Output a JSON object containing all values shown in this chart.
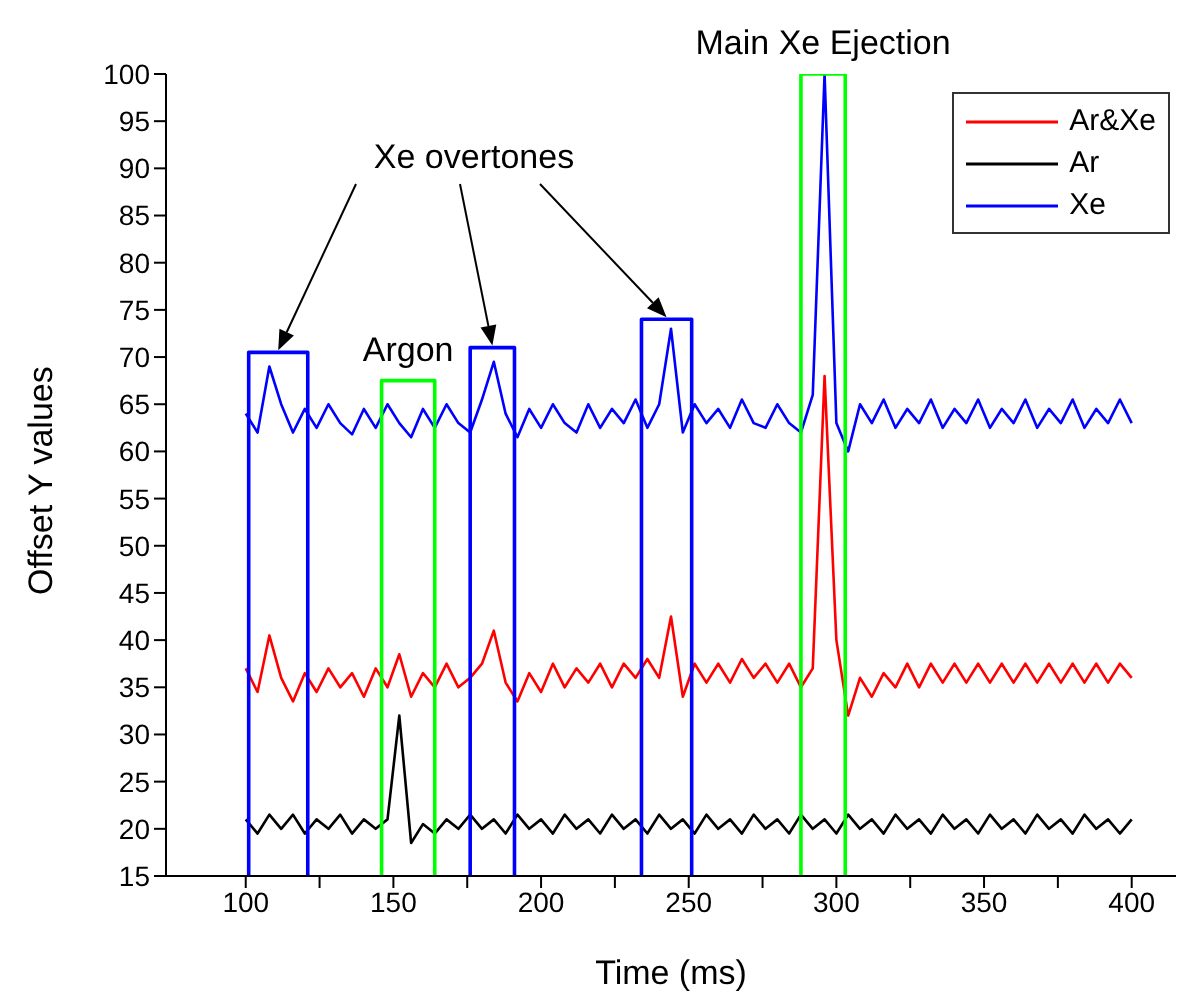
{
  "chart_data": {
    "type": "line",
    "xlabel": "Time (ms)",
    "ylabel": "Offset Y values",
    "x": [
      100,
      104,
      108,
      112,
      116,
      120,
      124,
      128,
      132,
      136,
      140,
      144,
      148,
      152,
      156,
      160,
      164,
      168,
      172,
      176,
      180,
      184,
      188,
      192,
      196,
      200,
      204,
      208,
      212,
      216,
      220,
      224,
      228,
      232,
      236,
      240,
      244,
      248,
      252,
      256,
      260,
      264,
      268,
      272,
      276,
      280,
      284,
      288,
      292,
      296,
      300,
      304,
      308,
      312,
      316,
      320,
      324,
      328,
      332,
      336,
      340,
      344,
      348,
      352,
      356,
      360,
      364,
      368,
      372,
      376,
      380,
      384,
      388,
      392,
      396,
      400
    ],
    "series": [
      {
        "name": "Ar&Xe",
        "color": "#ff0000",
        "values": [
          37,
          34.5,
          40.5,
          36,
          33.5,
          36.5,
          34.5,
          37,
          35,
          36.5,
          34,
          37,
          35,
          38.5,
          34,
          36.5,
          35,
          37.5,
          35,
          36,
          37.5,
          41,
          35.5,
          33.5,
          36.5,
          34.5,
          37.5,
          35,
          37,
          35.5,
          37.5,
          35,
          37.5,
          36,
          38,
          36,
          42.5,
          34,
          37.5,
          35.5,
          37.5,
          35.5,
          38,
          36,
          37.5,
          35.5,
          37.5,
          35,
          37,
          68,
          40,
          32,
          36,
          34,
          36.5,
          35,
          37.5,
          35,
          37.5,
          35.5,
          37.5,
          35.5,
          37.5,
          35.5,
          37.5,
          35.5,
          37.5,
          35.5,
          37.5,
          35.5,
          37.5,
          35.5,
          37.5,
          35.5,
          37.5,
          36
        ]
      },
      {
        "name": "Ar",
        "color": "#000000",
        "values": [
          21,
          19.5,
          21.5,
          20,
          21.5,
          19.5,
          21,
          20,
          21.5,
          19.5,
          21,
          20,
          21,
          32,
          18.5,
          20.5,
          19.5,
          21,
          20,
          21.5,
          20,
          21,
          19.5,
          21.5,
          20,
          21,
          19.5,
          21.5,
          20,
          21,
          19.5,
          21.5,
          20,
          21,
          19.5,
          21.5,
          20,
          21,
          19.5,
          21.5,
          20,
          21,
          19.5,
          21.5,
          20,
          21,
          19.5,
          21.5,
          20,
          21,
          19.5,
          21.5,
          20,
          21,
          19.5,
          21.5,
          20,
          21,
          19.5,
          21.5,
          20,
          21,
          19.5,
          21.5,
          20,
          21,
          19.5,
          21.5,
          20,
          21,
          19.5,
          21.5,
          20,
          21,
          19.5,
          21
        ]
      },
      {
        "name": "Xe",
        "color": "#0000ff",
        "values": [
          64,
          62,
          69,
          65,
          62,
          64.5,
          62.5,
          65,
          63,
          61.8,
          64.5,
          62.5,
          65,
          63,
          61.5,
          64.5,
          62.5,
          65,
          63,
          62,
          65.5,
          69.5,
          64,
          61.5,
          64.5,
          62.5,
          65,
          63,
          62,
          65,
          62.5,
          64.5,
          63,
          65.5,
          62.5,
          65,
          73,
          62,
          65,
          63,
          64.5,
          62.5,
          65.5,
          63,
          62.5,
          65,
          63,
          62,
          66,
          100,
          63,
          60,
          65,
          63,
          65.5,
          62.5,
          64.5,
          63,
          65.5,
          62.5,
          64.5,
          63,
          65.5,
          62.5,
          64.5,
          63,
          65.5,
          62.5,
          64.5,
          63,
          65.5,
          62.5,
          64.5,
          63,
          65.5,
          63
        ]
      },
      {
        "color": "#0000ff",
        "x": [
          101,
          101,
          121,
          121
        ],
        "values": [
          15,
          70.5,
          70.5,
          15
        ]
      },
      {
        "color": "#00ff00",
        "x": [
          146,
          146,
          164,
          164
        ],
        "values": [
          15,
          67.5,
          67.5,
          15
        ]
      },
      {
        "color": "#0000ff",
        "x": [
          176,
          176,
          191,
          191
        ],
        "values": [
          15,
          71,
          71,
          15
        ]
      },
      {
        "color": "#0000ff",
        "x": [
          234,
          234,
          251,
          251
        ],
        "values": [
          15,
          74,
          74,
          15
        ]
      },
      {
        "color": "#00ff00",
        "x": [
          288,
          288,
          303,
          303
        ],
        "values": [
          15,
          100,
          100,
          15
        ]
      }
    ],
    "annotations": [
      "Xe overtones",
      {
        "text": "Argon",
        "x": 155,
        "y": 67.5
      },
      {
        "text": "Main Xe Ejection",
        "x": 295.5,
        "y": 100
      }
    ],
    "xlim": [
      73,
      415
    ],
    "ylim": [
      15,
      100
    ],
    "xticks": [
      100,
      {
        "value": 125,
        "label": null
      },
      150,
      {
        "value": 175,
        "label": null
      },
      200,
      {
        "value": 225,
        "label": null
      },
      250,
      {
        "value": 275,
        "label": null
      },
      300,
      {
        "value": 325,
        "label": null
      },
      350,
      {
        "value": 375,
        "label": null
      },
      400
    ],
    "yticks": [
      15,
      20,
      25,
      30,
      35,
      40,
      45,
      50,
      55,
      60,
      65,
      70,
      75,
      80,
      85,
      90,
      95,
      100
    ],
    "grid": false,
    "legend": "top right",
    "marker": "none",
    "line_style": "solid"
  }
}
